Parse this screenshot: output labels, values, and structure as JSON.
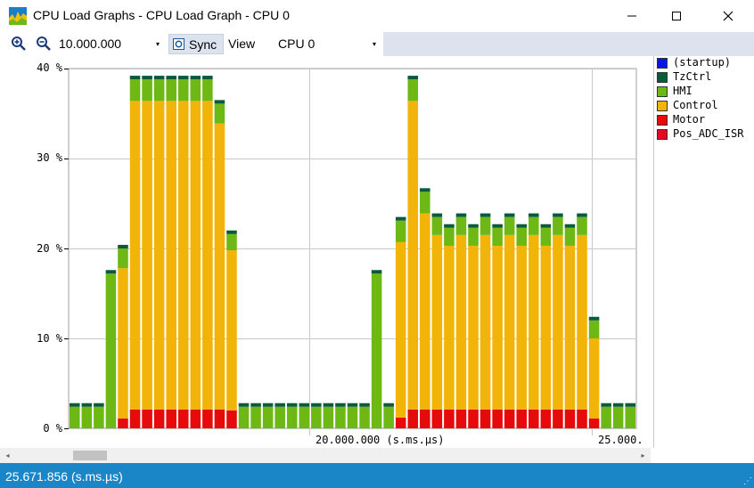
{
  "window": {
    "title": "CPU Load Graphs - CPU Load Graph - CPU 0",
    "minimize_glyph": "—",
    "maximize_glyph": "☐",
    "close_glyph": "✕"
  },
  "toolbar": {
    "zoom_in_icon": "zoom-in-icon",
    "zoom_out_icon": "zoom-out-icon",
    "zoom_value": "10.000.000",
    "sync_label": "Sync",
    "view_label": "View",
    "cpu_value": "CPU 0",
    "dropdown_glyph": "▾"
  },
  "legend": {
    "items": [
      {
        "label": "(startup)",
        "color": "#0a14e6"
      },
      {
        "label": "TzCtrl",
        "color": "#0a5a3c"
      },
      {
        "label": "HMI",
        "color": "#6db814"
      },
      {
        "label": "Control",
        "color": "#f2b408"
      },
      {
        "label": "Motor",
        "color": "#e60a0a"
      },
      {
        "label": "Pos_ADC_ISR",
        "color": "#e60a1e"
      }
    ]
  },
  "chart_data": {
    "type": "bar",
    "stacked": true,
    "ylim": [
      0,
      40
    ],
    "y_ticks": [
      "0 %",
      "10 %",
      "20 %",
      "30 %",
      "40 %"
    ],
    "x_tick_labels": [
      "20.000.000 (s.ms.µs)",
      "25.000."
    ],
    "grid": true,
    "series": [
      {
        "name": "Motor",
        "color": "#e60a0a",
        "values": [
          0,
          0,
          0,
          0,
          1.1,
          2.1,
          2.1,
          2.1,
          2.1,
          2.1,
          2.1,
          2.1,
          2.1,
          2.0,
          0,
          0,
          0,
          0,
          0,
          0,
          0,
          0,
          0,
          0,
          0,
          0,
          0,
          1.2,
          2.1,
          2.1,
          2.1,
          2.1,
          2.1,
          2.1,
          2.1,
          2.1,
          2.1,
          2.1,
          2.1,
          2.1,
          2.1,
          2.1,
          2.1,
          1.1,
          0,
          0,
          0
        ]
      },
      {
        "name": "Control",
        "color": "#f2b408",
        "values": [
          0,
          0,
          0,
          0,
          16.7,
          34.3,
          34.3,
          34.3,
          34.3,
          34.3,
          34.3,
          34.3,
          31.8,
          17.8,
          0,
          0,
          0,
          0,
          0,
          0,
          0,
          0,
          0,
          0,
          0,
          0,
          0,
          19.5,
          34.3,
          21.8,
          19.4,
          18.2,
          19.4,
          18.2,
          19.4,
          18.2,
          19.4,
          18.2,
          19.4,
          18.2,
          19.4,
          18.2,
          19.4,
          8.9,
          0,
          0,
          0
        ]
      },
      {
        "name": "HMI",
        "color": "#6db814",
        "values": [
          2.4,
          2.4,
          2.4,
          17.2,
          2.2,
          2.4,
          2.4,
          2.4,
          2.4,
          2.4,
          2.4,
          2.4,
          2.2,
          1.8,
          2.4,
          2.4,
          2.4,
          2.4,
          2.4,
          2.4,
          2.4,
          2.4,
          2.4,
          2.4,
          2.4,
          17.2,
          2.4,
          2.4,
          2.4,
          2.4,
          2.0,
          2.0,
          2.0,
          2.0,
          2.0,
          2.0,
          2.0,
          2.0,
          2.0,
          2.0,
          2.0,
          2.0,
          2.0,
          2.0,
          2.4,
          2.4,
          2.4
        ]
      },
      {
        "name": "TzCtrl",
        "color": "#0a5a3c",
        "values": [
          0.4,
          0.4,
          0.4,
          0.4,
          0.4,
          0.4,
          0.4,
          0.4,
          0.4,
          0.4,
          0.4,
          0.4,
          0.4,
          0.4,
          0.4,
          0.4,
          0.4,
          0.4,
          0.4,
          0.4,
          0.4,
          0.4,
          0.4,
          0.4,
          0.4,
          0.4,
          0.4,
          0.4,
          0.4,
          0.4,
          0.4,
          0.4,
          0.4,
          0.4,
          0.4,
          0.4,
          0.4,
          0.4,
          0.4,
          0.4,
          0.4,
          0.4,
          0.4,
          0.4,
          0.4,
          0.4,
          0.4
        ]
      }
    ]
  },
  "scrollbar": {
    "left_glyph": "◂",
    "right_glyph": "▸"
  },
  "status": {
    "time": "25.671.856 (s.ms.µs)",
    "grip": "⋰"
  }
}
